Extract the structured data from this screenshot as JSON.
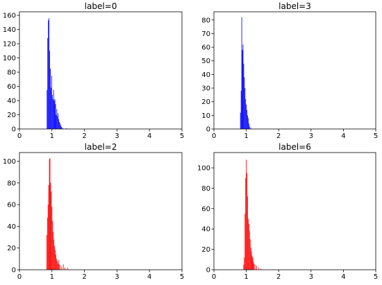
{
  "chart_data": [
    {
      "type": "bar",
      "title": "label=0",
      "color": "#0000ff",
      "xlim": [
        0,
        5
      ],
      "ylim": [
        0,
        165
      ],
      "xticks": [
        "0",
        "1",
        "2",
        "3",
        "4",
        "5"
      ],
      "yticks": [
        "0",
        "20",
        "40",
        "60",
        "80",
        "100",
        "120",
        "140",
        "160"
      ],
      "x": [
        0.85,
        0.87,
        0.89,
        0.91,
        0.93,
        0.95,
        0.97,
        0.99,
        1.01,
        1.03,
        1.05,
        1.07,
        1.09,
        1.11,
        1.13,
        1.15,
        1.17,
        1.19,
        1.21,
        1.23,
        1.25,
        1.27,
        1.29,
        1.31,
        1.35,
        1.45
      ],
      "values": [
        55,
        128,
        153,
        156,
        110,
        85,
        58,
        75,
        48,
        42,
        55,
        40,
        42,
        35,
        20,
        28,
        18,
        22,
        14,
        10,
        8,
        5,
        3,
        2,
        1,
        1
      ]
    },
    {
      "type": "bar",
      "title": "label=3",
      "color": "#0000ff",
      "xlim": [
        0,
        5
      ],
      "ylim": [
        0,
        86
      ],
      "xticks": [
        "0",
        "1",
        "2",
        "3",
        "4",
        "5"
      ],
      "yticks": [
        "0",
        "10",
        "20",
        "30",
        "40",
        "50",
        "60",
        "70",
        "80"
      ],
      "x": [
        0.82,
        0.84,
        0.86,
        0.88,
        0.9,
        0.92,
        0.94,
        0.96,
        0.98,
        1.0,
        1.02,
        1.04,
        1.06,
        1.08,
        1.1,
        1.14
      ],
      "values": [
        12,
        28,
        82,
        58,
        62,
        48,
        38,
        30,
        22,
        18,
        14,
        10,
        8,
        4,
        2,
        1
      ]
    },
    {
      "type": "bar",
      "title": "label=2",
      "color": "#ff0000",
      "xlim": [
        0,
        5
      ],
      "ylim": [
        0,
        108
      ],
      "xticks": [
        "0",
        "1",
        "2",
        "3",
        "4",
        "5"
      ],
      "yticks": [
        "0",
        "20",
        "40",
        "60",
        "80",
        "100"
      ],
      "x": [
        0.84,
        0.86,
        0.88,
        0.9,
        0.92,
        0.94,
        0.96,
        0.98,
        1.0,
        1.02,
        1.04,
        1.06,
        1.08,
        1.1,
        1.12,
        1.14,
        1.16,
        1.18,
        1.2,
        1.22,
        1.25,
        1.3,
        1.35,
        1.4,
        1.48
      ],
      "values": [
        32,
        48,
        60,
        78,
        102,
        103,
        80,
        72,
        58,
        45,
        35,
        28,
        22,
        18,
        14,
        10,
        8,
        6,
        9,
        5,
        4,
        3,
        5,
        2,
        2
      ]
    },
    {
      "type": "bar",
      "title": "label=6",
      "color": "#ff0000",
      "xlim": [
        0,
        5
      ],
      "ylim": [
        0,
        115
      ],
      "xticks": [
        "0",
        "1",
        "2",
        "3",
        "4",
        "5"
      ],
      "yticks": [
        "0",
        "20",
        "40",
        "60",
        "80",
        "100"
      ],
      "x": [
        0.92,
        0.94,
        0.96,
        0.98,
        1.0,
        1.02,
        1.04,
        1.06,
        1.08,
        1.1,
        1.12,
        1.14,
        1.16,
        1.18,
        1.2,
        1.22,
        1.24,
        1.27,
        1.32,
        1.38,
        1.45
      ],
      "values": [
        5,
        12,
        55,
        90,
        108,
        95,
        72,
        50,
        45,
        38,
        30,
        22,
        18,
        14,
        12,
        8,
        6,
        5,
        4,
        2,
        1
      ]
    }
  ]
}
